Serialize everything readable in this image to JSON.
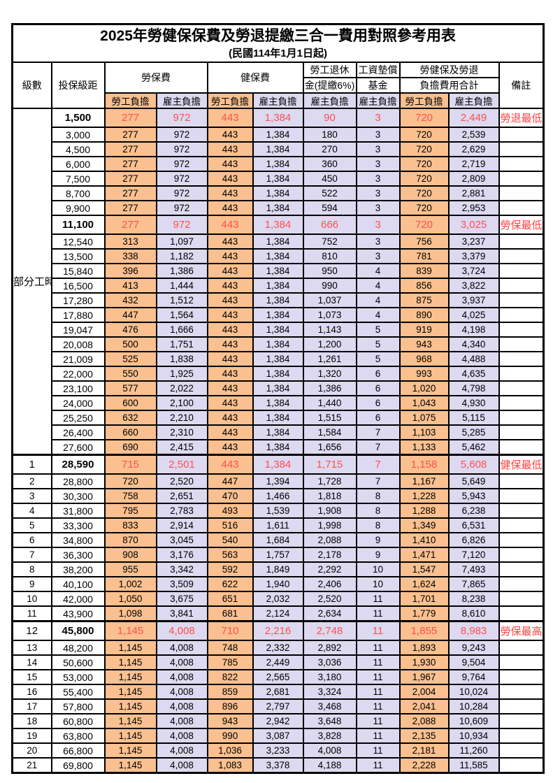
{
  "title": "2025年勞健保保費及勞退提繳三合一費用對照參考用表",
  "subtitle": "(民國114年1月1日起)",
  "colors": {
    "employee_bg": "#FAC08F",
    "employer_bg": "#DCD9F0",
    "highlight_text": "#FF5050",
    "note_text": "#FF4040"
  },
  "header": {
    "level": "級數",
    "bracket": "投保級距",
    "labor": "勞保費",
    "health": "健保費",
    "pension_line1": "勞工退休",
    "pension_line2": "金(提繳6%)",
    "fund_line1": "工資墊償",
    "fund_line2": "基金",
    "total_line1": "勞健保及勞退",
    "total_line2": "負擔費用合計",
    "note": "備註",
    "employee": "勞工負擔",
    "employer": "雇主負擔"
  },
  "part_time_label": "部分工時",
  "part_time_rowspan": 23,
  "rows": [
    {
      "level": "",
      "bracket": "1,500",
      "labor_emp": "277",
      "labor_er": "972",
      "health_emp": "443",
      "health_er": "1,384",
      "pension_er": "90",
      "fund_er": "3",
      "total_emp": "720",
      "total_er": "2,449",
      "note": "勞退最低級距",
      "highlight": true,
      "thick_top": false
    },
    {
      "level": "",
      "bracket": "3,000",
      "labor_emp": "277",
      "labor_er": "972",
      "health_emp": "443",
      "health_er": "1,384",
      "pension_er": "180",
      "fund_er": "3",
      "total_emp": "720",
      "total_er": "2,539",
      "note": "",
      "highlight": false,
      "thick_top": false
    },
    {
      "level": "",
      "bracket": "4,500",
      "labor_emp": "277",
      "labor_er": "972",
      "health_emp": "443",
      "health_er": "1,384",
      "pension_er": "270",
      "fund_er": "3",
      "total_emp": "720",
      "total_er": "2,629",
      "note": "",
      "highlight": false,
      "thick_top": false
    },
    {
      "level": "",
      "bracket": "6,000",
      "labor_emp": "277",
      "labor_er": "972",
      "health_emp": "443",
      "health_er": "1,384",
      "pension_er": "360",
      "fund_er": "3",
      "total_emp": "720",
      "total_er": "2,719",
      "note": "",
      "highlight": false,
      "thick_top": false
    },
    {
      "level": "",
      "bracket": "7,500",
      "labor_emp": "277",
      "labor_er": "972",
      "health_emp": "443",
      "health_er": "1,384",
      "pension_er": "450",
      "fund_er": "3",
      "total_emp": "720",
      "total_er": "2,809",
      "note": "",
      "highlight": false,
      "thick_top": false
    },
    {
      "level": "",
      "bracket": "8,700",
      "labor_emp": "277",
      "labor_er": "972",
      "health_emp": "443",
      "health_er": "1,384",
      "pension_er": "522",
      "fund_er": "3",
      "total_emp": "720",
      "total_er": "2,881",
      "note": "",
      "highlight": false,
      "thick_top": false
    },
    {
      "level": "",
      "bracket": "9,900",
      "labor_emp": "277",
      "labor_er": "972",
      "health_emp": "443",
      "health_er": "1,384",
      "pension_er": "594",
      "fund_er": "3",
      "total_emp": "720",
      "total_er": "2,953",
      "note": "",
      "highlight": false,
      "thick_top": false
    },
    {
      "level": "",
      "bracket": "11,100",
      "labor_emp": "277",
      "labor_er": "972",
      "health_emp": "443",
      "health_er": "1,384",
      "pension_er": "666",
      "fund_er": "3",
      "total_emp": "720",
      "total_er": "3,025",
      "note": "勞保最低級距",
      "highlight": true,
      "thick_top": false
    },
    {
      "level": "",
      "bracket": "12,540",
      "labor_emp": "313",
      "labor_er": "1,097",
      "health_emp": "443",
      "health_er": "1,384",
      "pension_er": "752",
      "fund_er": "3",
      "total_emp": "756",
      "total_er": "3,237",
      "note": "",
      "highlight": false,
      "thick_top": false
    },
    {
      "level": "",
      "bracket": "13,500",
      "labor_emp": "338",
      "labor_er": "1,182",
      "health_emp": "443",
      "health_er": "1,384",
      "pension_er": "810",
      "fund_er": "3",
      "total_emp": "781",
      "total_er": "3,379",
      "note": "",
      "highlight": false,
      "thick_top": false
    },
    {
      "level": "",
      "bracket": "15,840",
      "labor_emp": "396",
      "labor_er": "1,386",
      "health_emp": "443",
      "health_er": "1,384",
      "pension_er": "950",
      "fund_er": "4",
      "total_emp": "839",
      "total_er": "3,724",
      "note": "",
      "highlight": false,
      "thick_top": false
    },
    {
      "level": "",
      "bracket": "16,500",
      "labor_emp": "413",
      "labor_er": "1,444",
      "health_emp": "443",
      "health_er": "1,384",
      "pension_er": "990",
      "fund_er": "4",
      "total_emp": "856",
      "total_er": "3,822",
      "note": "",
      "highlight": false,
      "thick_top": false
    },
    {
      "level": "",
      "bracket": "17,280",
      "labor_emp": "432",
      "labor_er": "1,512",
      "health_emp": "443",
      "health_er": "1,384",
      "pension_er": "1,037",
      "fund_er": "4",
      "total_emp": "875",
      "total_er": "3,937",
      "note": "",
      "highlight": false,
      "thick_top": false
    },
    {
      "level": "",
      "bracket": "17,880",
      "labor_emp": "447",
      "labor_er": "1,564",
      "health_emp": "443",
      "health_er": "1,384",
      "pension_er": "1,073",
      "fund_er": "4",
      "total_emp": "890",
      "total_er": "4,025",
      "note": "",
      "highlight": false,
      "thick_top": false
    },
    {
      "level": "",
      "bracket": "19,047",
      "labor_emp": "476",
      "labor_er": "1,666",
      "health_emp": "443",
      "health_er": "1,384",
      "pension_er": "1,143",
      "fund_er": "5",
      "total_emp": "919",
      "total_er": "4,198",
      "note": "",
      "highlight": false,
      "thick_top": false
    },
    {
      "level": "",
      "bracket": "20,008",
      "labor_emp": "500",
      "labor_er": "1,751",
      "health_emp": "443",
      "health_er": "1,384",
      "pension_er": "1,200",
      "fund_er": "5",
      "total_emp": "943",
      "total_er": "4,340",
      "note": "",
      "highlight": false,
      "thick_top": false
    },
    {
      "level": "",
      "bracket": "21,009",
      "labor_emp": "525",
      "labor_er": "1,838",
      "health_emp": "443",
      "health_er": "1,384",
      "pension_er": "1,261",
      "fund_er": "5",
      "total_emp": "968",
      "total_er": "4,488",
      "note": "",
      "highlight": false,
      "thick_top": false
    },
    {
      "level": "",
      "bracket": "22,000",
      "labor_emp": "550",
      "labor_er": "1,925",
      "health_emp": "443",
      "health_er": "1,384",
      "pension_er": "1,320",
      "fund_er": "6",
      "total_emp": "993",
      "total_er": "4,635",
      "note": "",
      "highlight": false,
      "thick_top": false
    },
    {
      "level": "",
      "bracket": "23,100",
      "labor_emp": "577",
      "labor_er": "2,022",
      "health_emp": "443",
      "health_er": "1,384",
      "pension_er": "1,386",
      "fund_er": "6",
      "total_emp": "1,020",
      "total_er": "4,798",
      "note": "",
      "highlight": false,
      "thick_top": false
    },
    {
      "level": "",
      "bracket": "24,000",
      "labor_emp": "600",
      "labor_er": "2,100",
      "health_emp": "443",
      "health_er": "1,384",
      "pension_er": "1,440",
      "fund_er": "6",
      "total_emp": "1,043",
      "total_er": "4,930",
      "note": "",
      "highlight": false,
      "thick_top": false
    },
    {
      "level": "",
      "bracket": "25,250",
      "labor_emp": "632",
      "labor_er": "2,210",
      "health_emp": "443",
      "health_er": "1,384",
      "pension_er": "1,515",
      "fund_er": "6",
      "total_emp": "1,075",
      "total_er": "5,115",
      "note": "",
      "highlight": false,
      "thick_top": false
    },
    {
      "level": "",
      "bracket": "26,400",
      "labor_emp": "660",
      "labor_er": "2,310",
      "health_emp": "443",
      "health_er": "1,384",
      "pension_er": "1,584",
      "fund_er": "7",
      "total_emp": "1,103",
      "total_er": "5,285",
      "note": "",
      "highlight": false,
      "thick_top": false
    },
    {
      "level": "",
      "bracket": "27,600",
      "labor_emp": "690",
      "labor_er": "2,415",
      "health_emp": "443",
      "health_er": "1,384",
      "pension_er": "1,656",
      "fund_er": "7",
      "total_emp": "1,133",
      "total_er": "5,462",
      "note": "",
      "highlight": false,
      "thick_top": false
    },
    {
      "level": "1",
      "bracket": "28,590",
      "labor_emp": "715",
      "labor_er": "2,501",
      "health_emp": "443",
      "health_er": "1,384",
      "pension_er": "1,715",
      "fund_er": "7",
      "total_emp": "1,158",
      "total_er": "5,608",
      "note": "健保最低級距",
      "highlight": true,
      "thick_top": true
    },
    {
      "level": "2",
      "bracket": "28,800",
      "labor_emp": "720",
      "labor_er": "2,520",
      "health_emp": "447",
      "health_er": "1,394",
      "pension_er": "1,728",
      "fund_er": "7",
      "total_emp": "1,167",
      "total_er": "5,649",
      "note": "",
      "highlight": false,
      "thick_top": false
    },
    {
      "level": "3",
      "bracket": "30,300",
      "labor_emp": "758",
      "labor_er": "2,651",
      "health_emp": "470",
      "health_er": "1,466",
      "pension_er": "1,818",
      "fund_er": "8",
      "total_emp": "1,228",
      "total_er": "5,943",
      "note": "",
      "highlight": false,
      "thick_top": false
    },
    {
      "level": "4",
      "bracket": "31,800",
      "labor_emp": "795",
      "labor_er": "2,783",
      "health_emp": "493",
      "health_er": "1,539",
      "pension_er": "1,908",
      "fund_er": "8",
      "total_emp": "1,288",
      "total_er": "6,238",
      "note": "",
      "highlight": false,
      "thick_top": false
    },
    {
      "level": "5",
      "bracket": "33,300",
      "labor_emp": "833",
      "labor_er": "2,914",
      "health_emp": "516",
      "health_er": "1,611",
      "pension_er": "1,998",
      "fund_er": "8",
      "total_emp": "1,349",
      "total_er": "6,531",
      "note": "",
      "highlight": false,
      "thick_top": false
    },
    {
      "level": "6",
      "bracket": "34,800",
      "labor_emp": "870",
      "labor_er": "3,045",
      "health_emp": "540",
      "health_er": "1,684",
      "pension_er": "2,088",
      "fund_er": "9",
      "total_emp": "1,410",
      "total_er": "6,826",
      "note": "",
      "highlight": false,
      "thick_top": false
    },
    {
      "level": "7",
      "bracket": "36,300",
      "labor_emp": "908",
      "labor_er": "3,176",
      "health_emp": "563",
      "health_er": "1,757",
      "pension_er": "2,178",
      "fund_er": "9",
      "total_emp": "1,471",
      "total_er": "7,120",
      "note": "",
      "highlight": false,
      "thick_top": false
    },
    {
      "level": "8",
      "bracket": "38,200",
      "labor_emp": "955",
      "labor_er": "3,342",
      "health_emp": "592",
      "health_er": "1,849",
      "pension_er": "2,292",
      "fund_er": "10",
      "total_emp": "1,547",
      "total_er": "7,493",
      "note": "",
      "highlight": false,
      "thick_top": false
    },
    {
      "level": "9",
      "bracket": "40,100",
      "labor_emp": "1,002",
      "labor_er": "3,509",
      "health_emp": "622",
      "health_er": "1,940",
      "pension_er": "2,406",
      "fund_er": "10",
      "total_emp": "1,624",
      "total_er": "7,865",
      "note": "",
      "highlight": false,
      "thick_top": false
    },
    {
      "level": "10",
      "bracket": "42,000",
      "labor_emp": "1,050",
      "labor_er": "3,675",
      "health_emp": "651",
      "health_er": "2,032",
      "pension_er": "2,520",
      "fund_er": "11",
      "total_emp": "1,701",
      "total_er": "8,238",
      "note": "",
      "highlight": false,
      "thick_top": false
    },
    {
      "level": "11",
      "bracket": "43,900",
      "labor_emp": "1,098",
      "labor_er": "3,841",
      "health_emp": "681",
      "health_er": "2,124",
      "pension_er": "2,634",
      "fund_er": "11",
      "total_emp": "1,779",
      "total_er": "8,610",
      "note": "",
      "highlight": false,
      "thick_top": false
    },
    {
      "level": "12",
      "bracket": "45,800",
      "labor_emp": "1,145",
      "labor_er": "4,008",
      "health_emp": "710",
      "health_er": "2,216",
      "pension_er": "2,748",
      "fund_er": "11",
      "total_emp": "1,855",
      "total_er": "8,983",
      "note": "勞保最高級距",
      "highlight": true,
      "thick_top": true
    },
    {
      "level": "13",
      "bracket": "48,200",
      "labor_emp": "1,145",
      "labor_er": "4,008",
      "health_emp": "748",
      "health_er": "2,332",
      "pension_er": "2,892",
      "fund_er": "11",
      "total_emp": "1,893",
      "total_er": "9,243",
      "note": "",
      "highlight": false,
      "thick_top": false
    },
    {
      "level": "14",
      "bracket": "50,600",
      "labor_emp": "1,145",
      "labor_er": "4,008",
      "health_emp": "785",
      "health_er": "2,449",
      "pension_er": "3,036",
      "fund_er": "11",
      "total_emp": "1,930",
      "total_er": "9,504",
      "note": "",
      "highlight": false,
      "thick_top": false
    },
    {
      "level": "15",
      "bracket": "53,000",
      "labor_emp": "1,145",
      "labor_er": "4,008",
      "health_emp": "822",
      "health_er": "2,565",
      "pension_er": "3,180",
      "fund_er": "11",
      "total_emp": "1,967",
      "total_er": "9,764",
      "note": "",
      "highlight": false,
      "thick_top": false
    },
    {
      "level": "16",
      "bracket": "55,400",
      "labor_emp": "1,145",
      "labor_er": "4,008",
      "health_emp": "859",
      "health_er": "2,681",
      "pension_er": "3,324",
      "fund_er": "11",
      "total_emp": "2,004",
      "total_er": "10,024",
      "note": "",
      "highlight": false,
      "thick_top": false
    },
    {
      "level": "17",
      "bracket": "57,800",
      "labor_emp": "1,145",
      "labor_er": "4,008",
      "health_emp": "896",
      "health_er": "2,797",
      "pension_er": "3,468",
      "fund_er": "11",
      "total_emp": "2,041",
      "total_er": "10,284",
      "note": "",
      "highlight": false,
      "thick_top": false
    },
    {
      "level": "18",
      "bracket": "60,800",
      "labor_emp": "1,145",
      "labor_er": "4,008",
      "health_emp": "943",
      "health_er": "2,942",
      "pension_er": "3,648",
      "fund_er": "11",
      "total_emp": "2,088",
      "total_er": "10,609",
      "note": "",
      "highlight": false,
      "thick_top": false
    },
    {
      "level": "19",
      "bracket": "63,800",
      "labor_emp": "1,145",
      "labor_er": "4,008",
      "health_emp": "990",
      "health_er": "3,087",
      "pension_er": "3,828",
      "fund_er": "11",
      "total_emp": "2,135",
      "total_er": "10,934",
      "note": "",
      "highlight": false,
      "thick_top": false
    },
    {
      "level": "20",
      "bracket": "66,800",
      "labor_emp": "1,145",
      "labor_er": "4,008",
      "health_emp": "1,036",
      "health_er": "3,233",
      "pension_er": "4,008",
      "fund_er": "11",
      "total_emp": "2,181",
      "total_er": "11,260",
      "note": "",
      "highlight": false,
      "thick_top": false
    },
    {
      "level": "21",
      "bracket": "69,800",
      "labor_emp": "1,145",
      "labor_er": "4,008",
      "health_emp": "1,083",
      "health_er": "3,378",
      "pension_er": "4,188",
      "fund_er": "11",
      "total_emp": "2,228",
      "total_er": "11,585",
      "note": "",
      "highlight": false,
      "thick_top": false
    }
  ]
}
